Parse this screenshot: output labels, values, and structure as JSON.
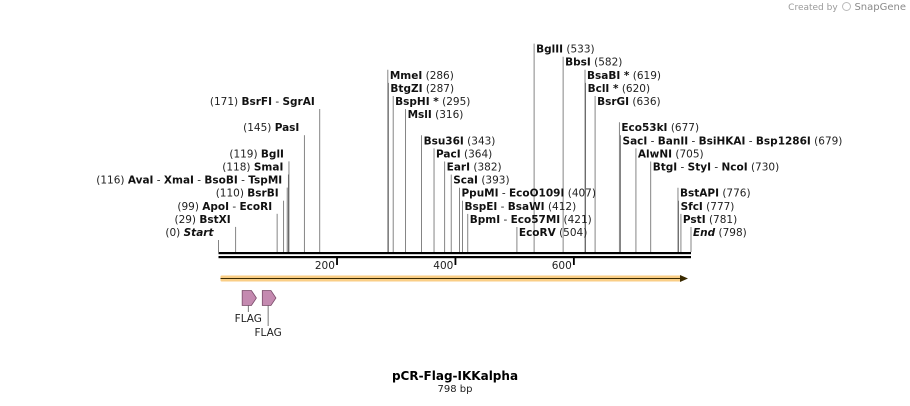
{
  "credit": {
    "text": "Created by",
    "brand": "SnapGene"
  },
  "plasmid": {
    "name": "pCR-Flag-IKKalpha",
    "length_label": "798 bp",
    "length": 798
  },
  "ruler": {
    "ticks": [
      {
        "value": 200,
        "label": "200"
      },
      {
        "value": 400,
        "label": "400"
      },
      {
        "value": 600,
        "label": "600"
      }
    ]
  },
  "sites": [
    {
      "pos": 0,
      "row": 0,
      "side": "right",
      "names": [
        "Start"
      ],
      "pos_label": "(0)",
      "italic": true
    },
    {
      "pos": 29,
      "row": 1,
      "side": "right",
      "names": [
        "BstXI"
      ],
      "pos_label": "(29)"
    },
    {
      "pos": 99,
      "row": 2,
      "side": "right",
      "names": [
        "ApoI",
        "EcoRI"
      ],
      "pos_label": "(99)"
    },
    {
      "pos": 110,
      "row": 3,
      "side": "right",
      "names": [
        "BsrBI"
      ],
      "pos_label": "(110)"
    },
    {
      "pos": 116,
      "row": 4,
      "side": "right",
      "names": [
        "AvaI",
        "XmaI",
        "BsoBI",
        "TspMI"
      ],
      "pos_label": "(116)"
    },
    {
      "pos": 118,
      "row": 5,
      "side": "right",
      "names": [
        "SmaI"
      ],
      "pos_label": "(118)"
    },
    {
      "pos": 119,
      "row": 6,
      "side": "right",
      "names": [
        "BglI"
      ],
      "pos_label": "(119)"
    },
    {
      "pos": 145,
      "row": 8,
      "side": "right",
      "names": [
        "PasI"
      ],
      "pos_label": "(145)"
    },
    {
      "pos": 171,
      "row": 10,
      "side": "right",
      "names": [
        "BsrFI",
        "SgrAI"
      ],
      "pos_label": "(171)"
    },
    {
      "pos": 286,
      "row": 12,
      "side": "left",
      "names": [
        "MmeI"
      ],
      "pos_label": "(286)"
    },
    {
      "pos": 287,
      "row": 11,
      "side": "left",
      "names": [
        "BtgZI"
      ],
      "pos_label": "(287)"
    },
    {
      "pos": 295,
      "row": 10,
      "side": "left",
      "names": [
        "BspHI *"
      ],
      "pos_label": "(295)"
    },
    {
      "pos": 316,
      "row": 9,
      "side": "left",
      "names": [
        "MslI"
      ],
      "pos_label": "(316)"
    },
    {
      "pos": 343,
      "row": 7,
      "side": "left",
      "names": [
        "Bsu36I"
      ],
      "pos_label": "(343)"
    },
    {
      "pos": 364,
      "row": 6,
      "side": "left",
      "names": [
        "PacI"
      ],
      "pos_label": "(364)"
    },
    {
      "pos": 382,
      "row": 5,
      "side": "left",
      "names": [
        "EarI"
      ],
      "pos_label": "(382)"
    },
    {
      "pos": 393,
      "row": 4,
      "side": "left",
      "names": [
        "ScaI"
      ],
      "pos_label": "(393)"
    },
    {
      "pos": 407,
      "row": 3,
      "side": "left",
      "names": [
        "PpuMI",
        "EcoO109I"
      ],
      "pos_label": "(407)"
    },
    {
      "pos": 412,
      "row": 2,
      "side": "left",
      "names": [
        "BspEI",
        "BsaWI"
      ],
      "pos_label": "(412)"
    },
    {
      "pos": 421,
      "row": 1,
      "side": "left",
      "names": [
        "BpmI",
        "Eco57MI"
      ],
      "pos_label": "(421)"
    },
    {
      "pos": 504,
      "row": 0,
      "side": "left",
      "names": [
        "EcoRV"
      ],
      "pos_label": "(504)"
    },
    {
      "pos": 533,
      "row": 14,
      "side": "left",
      "names": [
        "BglII"
      ],
      "pos_label": "(533)"
    },
    {
      "pos": 582,
      "row": 13,
      "side": "left",
      "names": [
        "BbsI"
      ],
      "pos_label": "(582)"
    },
    {
      "pos": 619,
      "row": 12,
      "side": "left",
      "names": [
        "BsaBI *"
      ],
      "pos_label": "(619)"
    },
    {
      "pos": 620,
      "row": 11,
      "side": "left",
      "names": [
        "BclI *"
      ],
      "pos_label": "(620)"
    },
    {
      "pos": 636,
      "row": 10,
      "side": "left",
      "names": [
        "BsrGI"
      ],
      "pos_label": "(636)"
    },
    {
      "pos": 677,
      "row": 8,
      "side": "left",
      "names": [
        "Eco53kI"
      ],
      "pos_label": "(677)"
    },
    {
      "pos": 679,
      "row": 7,
      "side": "left",
      "names": [
        "SacI",
        "BanII",
        "BsiHKAI",
        "Bsp1286I"
      ],
      "pos_label": "(679)"
    },
    {
      "pos": 705,
      "row": 6,
      "side": "left",
      "names": [
        "AlwNI"
      ],
      "pos_label": "(705)"
    },
    {
      "pos": 730,
      "row": 5,
      "side": "left",
      "names": [
        "BtgI",
        "StyI",
        "NcoI"
      ],
      "pos_label": "(730)"
    },
    {
      "pos": 776,
      "row": 3,
      "side": "left",
      "names": [
        "BstAPI"
      ],
      "pos_label": "(776)"
    },
    {
      "pos": 777,
      "row": 2,
      "side": "left",
      "names": [
        "SfcI"
      ],
      "pos_label": "(777)"
    },
    {
      "pos": 781,
      "row": 1,
      "side": "left",
      "names": [
        "PstI"
      ],
      "pos_label": "(781)"
    },
    {
      "pos": 798,
      "row": 0,
      "side": "left",
      "names": [
        "End"
      ],
      "pos_label": "(798)",
      "italic": true
    }
  ],
  "features": [
    {
      "name": "FLAG",
      "start": 40,
      "end": 64
    },
    {
      "name": "FLAG",
      "start": 74,
      "end": 97
    }
  ],
  "orf": {
    "start": 0,
    "end": 798,
    "color": "#f5a623"
  },
  "colors": {
    "feature": "#c48ab0",
    "feature_stroke": "#7a4d6a",
    "backbone": "#000000"
  }
}
